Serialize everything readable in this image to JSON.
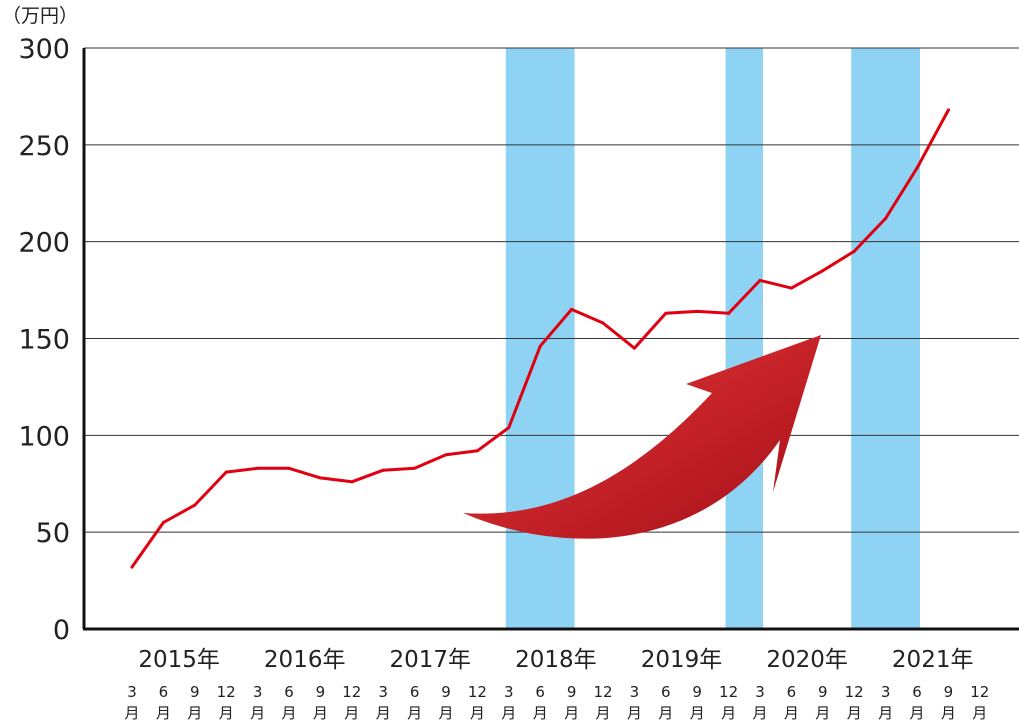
{
  "chart_data": {
    "type": "line",
    "unit_label": "（万円）",
    "y_ticks": [
      "300",
      "250",
      "200",
      "150",
      "100",
      "50",
      "0"
    ],
    "ylim": [
      0,
      300
    ],
    "grid": true,
    "month_unit": "月",
    "years": [
      "2015年",
      "2016年",
      "2017年",
      "2018年",
      "2019年",
      "2020年",
      "2021年"
    ],
    "months": [
      "3",
      "6",
      "9",
      "12"
    ],
    "series": [
      {
        "color": "#e00010",
        "values": [
          32,
          55,
          64,
          81,
          83,
          83,
          78,
          76,
          82,
          83,
          90,
          92,
          104,
          146,
          165,
          158,
          145,
          163,
          164,
          163,
          180,
          176,
          185,
          195,
          212,
          238,
          268
        ]
      }
    ],
    "highlight_bands": [
      {
        "from_index": 12,
        "to_index": 14
      },
      {
        "from_index": 19,
        "to_index": 20
      },
      {
        "from_index": 23,
        "to_index": 25
      }
    ],
    "highlight_color": "#8fd3f4",
    "annotation_arrow": {
      "direction": "up-right",
      "color": "#c4161c"
    }
  }
}
